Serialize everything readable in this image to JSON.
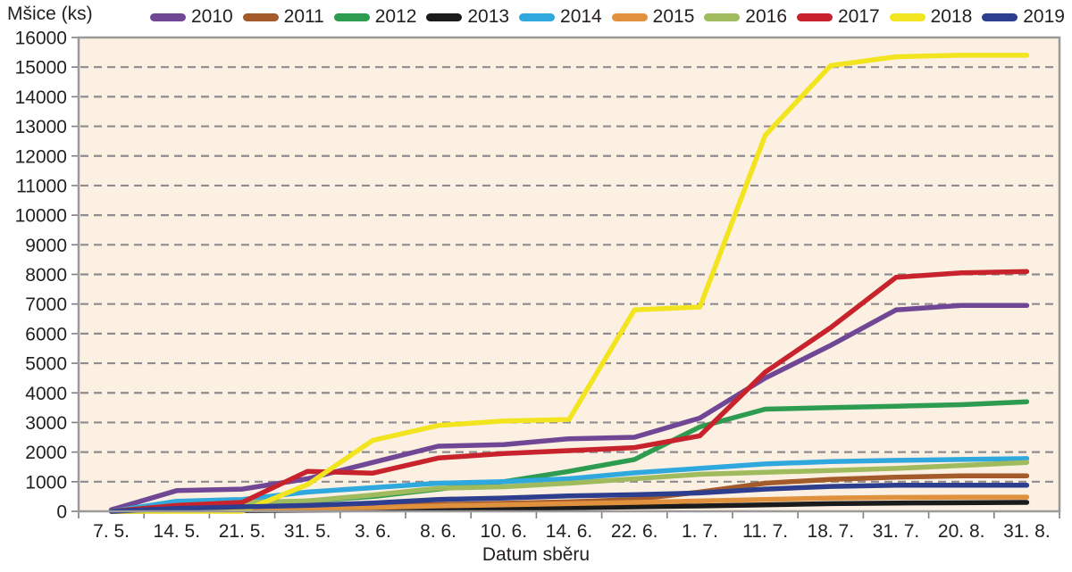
{
  "figure": {
    "y_axis_title": "Mšice (ks)",
    "x_axis_title": "Datum sběru"
  },
  "chart_data": {
    "type": "line",
    "title": "",
    "ylabel": "Mšice (ks)",
    "xlabel": "Datum sběru",
    "ylim": [
      0,
      16000
    ],
    "ytick_step": 1000,
    "grid": "horizontal-dashed",
    "legend_position": "top",
    "plot_background": "#fbf0e2",
    "gridline_color": "#8e8c8f",
    "frame_color": "#9b9999",
    "categories": [
      "7. 5.",
      "14. 5.",
      "21. 5.",
      "31. 5.",
      "3. 6.",
      "8. 6.",
      "10. 6.",
      "14. 6.",
      "22. 6.",
      "1. 7.",
      "11. 7.",
      "18. 7.",
      "31. 7.",
      "20. 8.",
      "31. 8."
    ],
    "series": [
      {
        "name": "2010",
        "color": "#6f4795",
        "values": [
          50,
          700,
          750,
          1100,
          1650,
          2200,
          2250,
          2450,
          2500,
          3150,
          4500,
          5600,
          6800,
          6950,
          6950
        ]
      },
      {
        "name": "2011",
        "color": "#a35b2b",
        "values": [
          0,
          50,
          80,
          130,
          180,
          230,
          270,
          320,
          400,
          650,
          950,
          1080,
          1150,
          1200,
          1200
        ]
      },
      {
        "name": "2012",
        "color": "#2d9b50",
        "values": [
          0,
          50,
          100,
          350,
          500,
          750,
          1000,
          1350,
          1750,
          2850,
          3450,
          3500,
          3550,
          3600,
          3700
        ]
      },
      {
        "name": "2013",
        "color": "#1b1b1b",
        "values": [
          0,
          10,
          20,
          40,
          60,
          80,
          100,
          120,
          150,
          180,
          220,
          260,
          280,
          290,
          300
        ]
      },
      {
        "name": "2014",
        "color": "#2fa8dd",
        "values": [
          0,
          340,
          400,
          650,
          800,
          950,
          1000,
          1100,
          1300,
          1450,
          1600,
          1680,
          1720,
          1750,
          1780
        ]
      },
      {
        "name": "2015",
        "color": "#e0913e",
        "values": [
          0,
          30,
          60,
          100,
          130,
          180,
          220,
          260,
          300,
          350,
          400,
          450,
          470,
          480,
          480
        ]
      },
      {
        "name": "2016",
        "color": "#9fbb5e",
        "values": [
          0,
          200,
          300,
          350,
          550,
          780,
          830,
          950,
          1100,
          1250,
          1320,
          1380,
          1450,
          1550,
          1650
        ]
      },
      {
        "name": "2017",
        "color": "#c8232c",
        "values": [
          0,
          200,
          300,
          1350,
          1290,
          1800,
          1950,
          2050,
          2150,
          2550,
          4700,
          6200,
          7900,
          8050,
          8100
        ]
      },
      {
        "name": "2018",
        "color": "#f2e41e",
        "values": [
          0,
          0,
          0,
          900,
          2400,
          2900,
          3050,
          3100,
          6800,
          6900,
          12700,
          15050,
          15350,
          15400,
          15400
        ]
      },
      {
        "name": "2019",
        "color": "#2d3e8f",
        "values": [
          0,
          100,
          150,
          200,
          280,
          400,
          450,
          520,
          560,
          620,
          750,
          840,
          880,
          880,
          880
        ]
      }
    ]
  }
}
